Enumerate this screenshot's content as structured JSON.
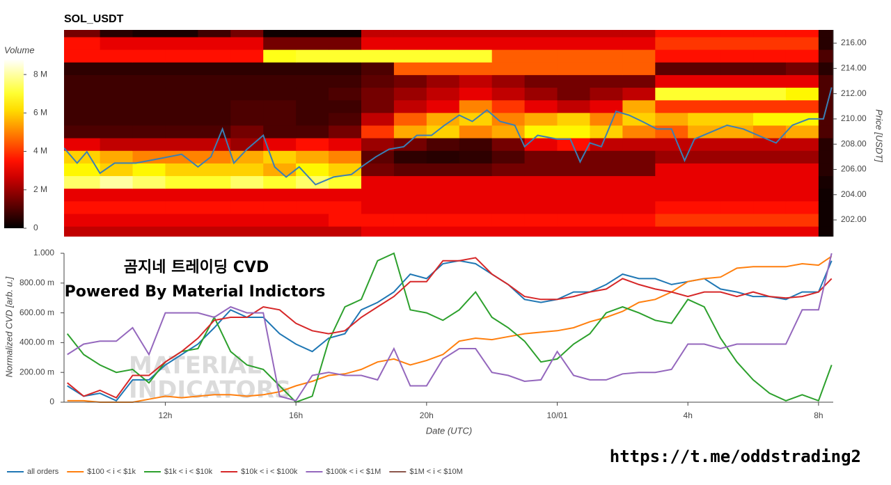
{
  "chart_data": [
    {
      "type": "heatmap",
      "title": "SOL_USDT",
      "ylabel": "Price [USDT]",
      "xlim": [
        8.9,
        32.45
      ],
      "ylim": [
        200.68,
        217.05
      ],
      "yticks": [
        {
          "value": 202,
          "label": "202.00"
        },
        {
          "value": 204,
          "label": "204.00"
        },
        {
          "value": 206,
          "label": "206.00"
        },
        {
          "value": 208,
          "label": "208.00"
        },
        {
          "value": 210,
          "label": "210.00"
        },
        {
          "value": 212,
          "label": "212.00"
        },
        {
          "value": 214,
          "label": "214.00"
        },
        {
          "value": 216,
          "label": "216.00"
        }
      ],
      "xbins": [
        8.9,
        10,
        11,
        12,
        13,
        14,
        15,
        16,
        17,
        18,
        19,
        20,
        21,
        22,
        23,
        24,
        25,
        26,
        27,
        28,
        29,
        30,
        31,
        32,
        32.45
      ],
      "ybins": [
        200.5,
        201.5,
        202.5,
        203.5,
        204.5,
        205.5,
        206.5,
        207.5,
        208.5,
        209.5,
        210.5,
        211.5,
        212.5,
        213.5,
        214.5,
        215.5,
        216.5,
        217.5
      ],
      "z": [
        [
          2.5,
          2.5,
          2.5,
          2.5,
          2.5,
          2.5,
          2.5,
          2.5,
          2.5,
          3,
          3,
          3,
          3,
          3,
          3,
          3,
          3,
          3,
          3,
          3,
          3,
          3,
          3,
          0.2
        ],
        [
          3,
          3,
          3,
          3,
          3,
          3,
          3,
          3,
          3.5,
          3.5,
          3.5,
          3.5,
          3.5,
          3.5,
          3.5,
          3.5,
          3.5,
          3.5,
          4,
          4,
          4,
          4,
          4,
          0.2
        ],
        [
          3.5,
          3.5,
          3.5,
          3.5,
          3.5,
          3.5,
          3.5,
          3.5,
          3.5,
          3,
          3,
          3,
          3,
          3,
          3,
          3,
          3,
          3,
          3.5,
          3.5,
          3.5,
          3.5,
          3.5,
          0.2
        ],
        [
          3,
          3,
          3,
          3,
          3,
          3,
          3,
          3,
          3,
          3,
          3,
          3,
          3,
          3,
          3,
          3,
          3,
          3,
          3,
          3,
          3,
          3,
          3,
          0.2
        ],
        [
          7.5,
          8,
          7.5,
          7,
          7,
          7.5,
          7,
          7.5,
          7,
          3,
          3,
          3,
          3,
          3,
          3,
          3,
          3,
          3,
          3,
          3,
          3,
          3,
          3,
          0.3
        ],
        [
          6.5,
          6,
          6.5,
          6,
          6,
          6,
          5.5,
          6.5,
          6,
          1.5,
          1.2,
          1.2,
          1.2,
          1.5,
          1.5,
          1.5,
          1.5,
          1.5,
          3,
          3,
          3,
          3,
          3,
          0.5
        ],
        [
          6,
          5.5,
          5,
          5,
          5,
          5.5,
          6,
          5.5,
          5,
          1.2,
          0.6,
          0.5,
          0.6,
          1,
          1.5,
          1.5,
          1.5,
          1.5,
          2,
          2,
          2,
          2,
          2,
          0.5
        ],
        [
          3,
          2.5,
          2.5,
          2.5,
          2.5,
          2,
          3,
          3.5,
          3,
          2,
          1.5,
          1,
          0.8,
          1.5,
          3,
          3.5,
          2.5,
          2.5,
          2.5,
          2.5,
          2.5,
          2.5,
          2.5,
          0.5
        ],
        [
          1,
          1,
          1,
          1,
          1,
          1.5,
          1,
          1,
          1.5,
          4,
          5.5,
          6,
          5,
          5.5,
          6.5,
          6.5,
          6,
          5,
          4.5,
          5.5,
          5.5,
          5,
          5.5,
          1
        ],
        [
          0.8,
          0.8,
          0.8,
          0.8,
          0.8,
          1,
          1,
          0.8,
          1,
          2.5,
          4.5,
          5.5,
          6,
          5,
          5.5,
          6,
          5,
          6,
          5.5,
          6,
          6,
          6.5,
          6.5,
          1
        ],
        [
          0.8,
          0.8,
          0.8,
          0.8,
          0.8,
          1,
          1,
          0.8,
          0.8,
          1.5,
          2.5,
          3,
          5,
          4,
          3,
          2.5,
          3,
          5.5,
          4,
          4,
          4,
          4,
          4,
          1
        ],
        [
          0.8,
          0.8,
          0.8,
          0.8,
          0.8,
          0.8,
          0.8,
          0.8,
          1,
          1.5,
          2,
          2.5,
          3,
          2.5,
          2,
          1.5,
          2,
          2.5,
          7,
          7,
          7,
          7,
          6.5,
          1
        ],
        [
          0.8,
          0.8,
          0.8,
          0.8,
          0.8,
          0.8,
          0.8,
          0.8,
          0.8,
          1.2,
          1.5,
          2,
          2.5,
          2,
          1.5,
          1.5,
          1.5,
          1.5,
          3,
          3,
          3,
          3,
          3,
          1
        ],
        [
          0.6,
          0.6,
          0.6,
          0.6,
          0.6,
          0.6,
          0.6,
          0.6,
          0.6,
          1,
          4.5,
          4.5,
          4.5,
          4.5,
          4.5,
          4.5,
          4.5,
          4.5,
          1.2,
          1.2,
          1.2,
          1.2,
          1.5,
          0.5
        ],
        [
          3.5,
          3.5,
          3.5,
          3.5,
          3.5,
          3.5,
          6.8,
          7,
          7,
          7,
          7,
          7,
          7,
          4.5,
          4.5,
          4.5,
          4.5,
          4.5,
          3.5,
          3.5,
          3.5,
          3.5,
          3.5,
          1
        ],
        [
          3.5,
          3,
          3,
          3,
          3,
          3,
          1.5,
          1.5,
          1.5,
          3,
          3,
          3,
          3,
          3,
          3,
          3,
          3,
          3,
          4,
          4,
          4,
          4,
          4,
          0.5
        ],
        [
          1.5,
          0.5,
          0.3,
          0.3,
          0.8,
          1.5,
          0.2,
          0.2,
          0.2,
          2.5,
          2.5,
          2.5,
          2.5,
          2.5,
          2.5,
          2.5,
          2.5,
          2.5,
          3.5,
          3.5,
          3.5,
          3.5,
          3.5,
          0.5
        ]
      ],
      "colorbar": {
        "title": "Volume",
        "lim": [
          0,
          8.8
        ],
        "ticks": [
          0,
          {
            "value": 2,
            "label": "2 M"
          },
          {
            "value": 4,
            "label": "4 M"
          },
          {
            "value": 6,
            "label": "6 M"
          },
          {
            "value": 8,
            "label": "8 M"
          }
        ]
      },
      "price": {
        "color": "#3a7fb5",
        "x": [
          8.9,
          9.3,
          9.6,
          10.0,
          10.45,
          11.1,
          11.8,
          12.5,
          13.0,
          13.4,
          13.75,
          14.1,
          14.5,
          15.0,
          15.35,
          15.7,
          16.1,
          16.6,
          17.15,
          17.7,
          18.0,
          18.45,
          18.85,
          19.3,
          19.7,
          20.15,
          20.55,
          21.0,
          21.4,
          21.85,
          22.25,
          22.7,
          23.0,
          23.4,
          24.0,
          24.4,
          24.7,
          25.0,
          25.35,
          25.8,
          26.2,
          26.6,
          27.05,
          27.5,
          27.9,
          28.2,
          28.65,
          29.2,
          29.7,
          30.15,
          30.7,
          31.2,
          31.7,
          32.15,
          32.4
        ],
        "values": [
          207.7,
          206.5,
          207.4,
          205.7,
          206.5,
          206.5,
          206.85,
          207.2,
          206.2,
          207.0,
          209.2,
          206.5,
          207.6,
          208.7,
          206.2,
          205.4,
          206.2,
          204.8,
          205.4,
          205.6,
          206.2,
          207.0,
          207.6,
          207.8,
          208.7,
          208.7,
          209.5,
          210.3,
          209.8,
          210.7,
          209.8,
          209.5,
          207.8,
          208.7,
          208.4,
          208.4,
          206.6,
          208.1,
          207.8,
          210.6,
          210.3,
          209.8,
          209.2,
          209.2,
          206.7,
          208.4,
          208.9,
          209.5,
          209.2,
          208.7,
          208.1,
          209.5,
          210.0,
          210.0,
          212.5
        ]
      }
    },
    {
      "type": "line",
      "ylabel": "Normalized CVD [arb. u.]",
      "xlabel": "Date (UTC)",
      "annotations": [
        "곰지네 트레이딩 CVD",
        "Powered By Material Indictors"
      ],
      "watermark": [
        "MATERIAL",
        "INDICATORS"
      ],
      "xlim": [
        8.9,
        32.45
      ],
      "ylim": [
        0,
        1
      ],
      "xticks": [
        {
          "value": 12,
          "label": "12h"
        },
        {
          "value": 16,
          "label": "16h"
        },
        {
          "value": 20,
          "label": "20h"
        },
        {
          "value": 24,
          "label": "10/01"
        },
        {
          "value": 28,
          "label": "4h"
        },
        {
          "value": 32,
          "label": "8h"
        }
      ],
      "yticks": [
        0,
        {
          "value": 0.2,
          "label": "200.00 m"
        },
        {
          "value": 0.4,
          "label": "400.00 m"
        },
        {
          "value": 0.6,
          "label": "600.00 m"
        },
        {
          "value": 0.8,
          "label": "800.00 m"
        },
        {
          "value": 1,
          "label": "1.000"
        }
      ],
      "legend": "bottom-left",
      "x": [
        9,
        9.5,
        10,
        10.5,
        11,
        11.5,
        12,
        12.5,
        13,
        13.5,
        14,
        14.5,
        15,
        15.5,
        16,
        16.5,
        17,
        17.5,
        18,
        18.5,
        19,
        19.5,
        20,
        20.5,
        21,
        21.5,
        22,
        22.5,
        23,
        23.5,
        24,
        24.5,
        25,
        25.5,
        26,
        26.5,
        27,
        27.5,
        28,
        28.5,
        29,
        29.5,
        30,
        30.5,
        31,
        31.5,
        32,
        32.4
      ],
      "series": [
        {
          "name": "all orders",
          "color": "#1f77b4",
          "values": [
            0.11,
            0.04,
            0.06,
            0.01,
            0.15,
            0.15,
            0.25,
            0.32,
            0.39,
            0.5,
            0.62,
            0.57,
            0.57,
            0.46,
            0.39,
            0.34,
            0.43,
            0.46,
            0.62,
            0.67,
            0.74,
            0.86,
            0.83,
            0.93,
            0.95,
            0.93,
            0.86,
            0.79,
            0.69,
            0.67,
            0.69,
            0.74,
            0.74,
            0.79,
            0.86,
            0.83,
            0.83,
            0.79,
            0.81,
            0.83,
            0.76,
            0.74,
            0.71,
            0.71,
            0.69,
            0.74,
            0.74,
            0.95
          ]
        },
        {
          "name": "$100 < i < $1k",
          "color": "#ff7f0e",
          "values": [
            0.01,
            0.01,
            0,
            0,
            0,
            0.02,
            0.04,
            0.03,
            0.04,
            0.05,
            0.05,
            0.04,
            0.05,
            0.07,
            0.11,
            0.14,
            0.18,
            0.19,
            0.22,
            0.27,
            0.29,
            0.25,
            0.28,
            0.32,
            0.41,
            0.43,
            0.42,
            0.44,
            0.46,
            0.47,
            0.48,
            0.5,
            0.54,
            0.57,
            0.61,
            0.67,
            0.69,
            0.74,
            0.81,
            0.83,
            0.84,
            0.9,
            0.91,
            0.91,
            0.91,
            0.93,
            0.92,
            0.98
          ]
        },
        {
          "name": "$1k < i < $10k",
          "color": "#2ca02c",
          "values": [
            0.46,
            0.32,
            0.25,
            0.2,
            0.22,
            0.13,
            0.27,
            0.34,
            0.36,
            0.57,
            0.34,
            0.25,
            0.22,
            0.11,
            0,
            0.04,
            0.41,
            0.64,
            0.69,
            0.95,
            1.0,
            0.62,
            0.6,
            0.55,
            0.62,
            0.74,
            0.57,
            0.5,
            0.41,
            0.27,
            0.29,
            0.39,
            0.46,
            0.6,
            0.64,
            0.6,
            0.55,
            0.53,
            0.69,
            0.64,
            0.43,
            0.27,
            0.15,
            0.06,
            0.01,
            0.05,
            0.01,
            0.25
          ]
        },
        {
          "name": "$10k < i < $100k",
          "color": "#d62728",
          "values": [
            0.13,
            0.04,
            0.08,
            0.03,
            0.18,
            0.18,
            0.27,
            0.34,
            0.43,
            0.55,
            0.57,
            0.57,
            0.64,
            0.62,
            0.53,
            0.48,
            0.46,
            0.48,
            0.57,
            0.64,
            0.71,
            0.81,
            0.81,
            0.95,
            0.95,
            0.97,
            0.86,
            0.79,
            0.71,
            0.69,
            0.69,
            0.71,
            0.74,
            0.76,
            0.83,
            0.79,
            0.76,
            0.74,
            0.71,
            0.74,
            0.74,
            0.71,
            0.74,
            0.71,
            0.7,
            0.71,
            0.74,
            0.83
          ]
        },
        {
          "name": "$100k < i < $1M",
          "color": "#9467bd",
          "values": [
            0.32,
            0.39,
            0.41,
            0.41,
            0.5,
            0.32,
            0.6,
            0.6,
            0.6,
            0.57,
            0.64,
            0.6,
            0.6,
            0.04,
            0.01,
            0.18,
            0.2,
            0.18,
            0.18,
            0.15,
            0.36,
            0.11,
            0.11,
            0.29,
            0.36,
            0.36,
            0.2,
            0.18,
            0.14,
            0.15,
            0.34,
            0.18,
            0.15,
            0.15,
            0.19,
            0.2,
            0.2,
            0.22,
            0.39,
            0.39,
            0.36,
            0.39,
            0.39,
            0.39,
            0.39,
            0.62,
            0.62,
            1.0
          ]
        },
        {
          "name": "$1M < i < $10M",
          "color": "#8c564b",
          "values": [
            null,
            null,
            null,
            null,
            null,
            null,
            null,
            null,
            null,
            null,
            null,
            null,
            null,
            null,
            null,
            null,
            null,
            null,
            null,
            null,
            null,
            null,
            null,
            null,
            null,
            null,
            null,
            null,
            null,
            null,
            null,
            null,
            null,
            null,
            null,
            null,
            null,
            null,
            null,
            null,
            null,
            null,
            null,
            null,
            null,
            null,
            null,
            null
          ]
        }
      ]
    }
  ],
  "footer_link": "https://t.me/oddstrading2"
}
